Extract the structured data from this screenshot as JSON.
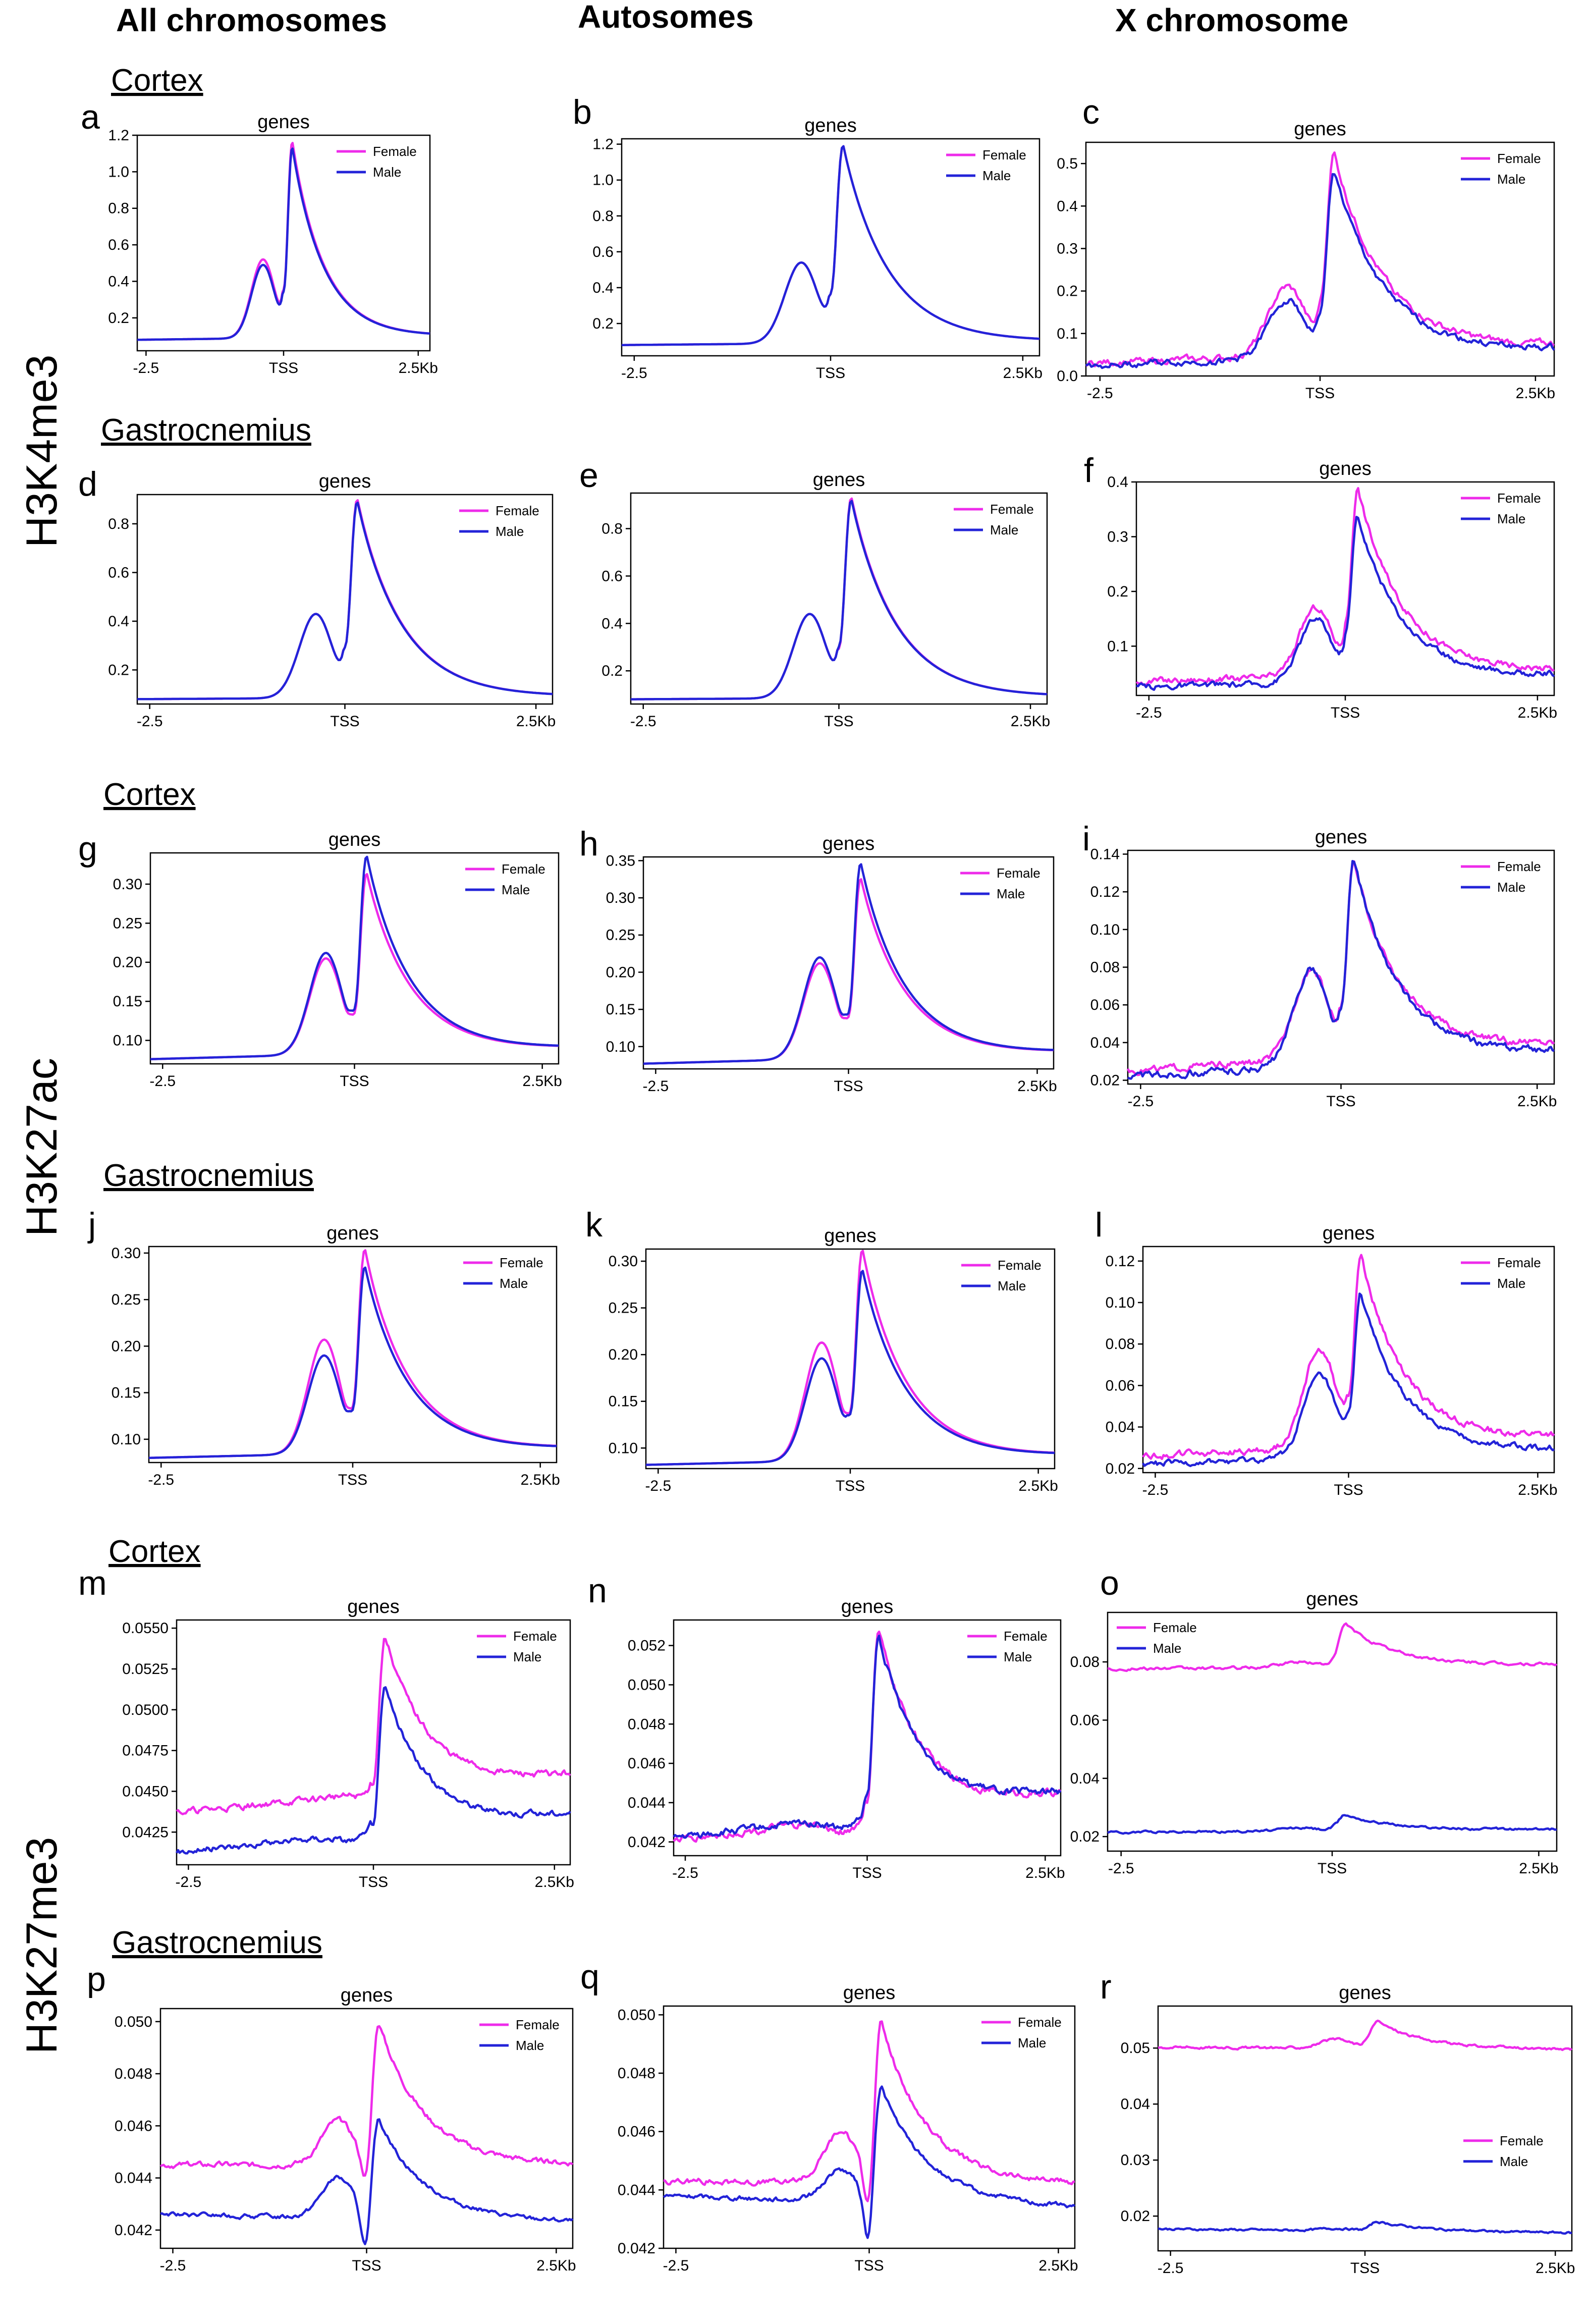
{
  "column_titles": [
    "All chromosomes",
    "Autosomes",
    "X chromosome"
  ],
  "row_titles": [
    "H3K4me3",
    "H3K27ac",
    "H3K27me3"
  ],
  "tissues": [
    "Cortex",
    "Gastrocnemius"
  ],
  "colors": {
    "female": "#ee2bea",
    "male": "#2323d8",
    "axis": "#000000"
  },
  "legend": [
    "Female",
    "Male"
  ],
  "chart_data": [
    {
      "id": "a",
      "type": "line",
      "title": "genes",
      "x_ticks": [
        "-2.5",
        "TSS",
        "2.5Kb"
      ],
      "ylim": [
        0.02,
        1.2
      ],
      "yticks": [
        "0.2",
        "0.4",
        "0.6",
        "0.8",
        "1.0",
        "1.2"
      ],
      "legend_position": "top-right",
      "series": [
        {
          "name": "Female",
          "shape": {
            "base": 0.08,
            "end": 0.1,
            "peak1": 0.52,
            "dip": 0.35,
            "peak2": 1.15
          }
        },
        {
          "name": "Male",
          "shape": {
            "base": 0.08,
            "end": 0.1,
            "peak1": 0.49,
            "dip": 0.34,
            "peak2": 1.12
          }
        }
      ]
    },
    {
      "id": "b",
      "type": "line",
      "title": "genes",
      "x_ticks": [
        "-2.5",
        "TSS",
        "2.5Kb"
      ],
      "ylim": [
        0.02,
        1.23
      ],
      "yticks": [
        "0.2",
        "0.4",
        "0.6",
        "0.8",
        "1.0",
        "1.2"
      ],
      "legend_position": "top-right",
      "series": [
        {
          "name": "Female",
          "shape": {
            "base": 0.08,
            "end": 0.1,
            "peak1": 0.54,
            "dip": 0.36,
            "peak2": 1.18
          }
        },
        {
          "name": "Male",
          "shape": {
            "base": 0.08,
            "end": 0.1,
            "peak1": 0.54,
            "dip": 0.36,
            "peak2": 1.18
          }
        }
      ]
    },
    {
      "id": "c",
      "type": "line",
      "title": "genes",
      "x_ticks": [
        "-2.5",
        "TSS",
        "2.5Kb"
      ],
      "ylim": [
        0,
        0.55
      ],
      "yticks": [
        "0.0",
        "0.1",
        "0.2",
        "0.3",
        "0.4",
        "0.5"
      ],
      "legend_position": "top-right",
      "series": [
        {
          "name": "Female",
          "shape": {
            "base": 0.03,
            "end": 0.07,
            "peak1": 0.21,
            "dip": 0.18,
            "peak2": 0.52
          }
        },
        {
          "name": "Male",
          "shape": {
            "base": 0.025,
            "end": 0.06,
            "peak1": 0.18,
            "dip": 0.15,
            "peak2": 0.48
          }
        }
      ]
    },
    {
      "id": "d",
      "type": "line",
      "title": "genes",
      "x_ticks": [
        "-2.5",
        "TSS",
        "2.5Kb"
      ],
      "ylim": [
        0.06,
        0.92
      ],
      "yticks": [
        "0.2",
        "0.4",
        "0.6",
        "0.8"
      ],
      "legend_position": "top-right",
      "series": [
        {
          "name": "Female",
          "shape": {
            "base": 0.08,
            "end": 0.09,
            "peak1": 0.43,
            "dip": 0.29,
            "peak2": 0.89
          }
        },
        {
          "name": "Male",
          "shape": {
            "base": 0.08,
            "end": 0.09,
            "peak1": 0.43,
            "dip": 0.29,
            "peak2": 0.88
          }
        }
      ]
    },
    {
      "id": "e",
      "type": "line",
      "title": "genes",
      "x_ticks": [
        "-2.5",
        "TSS",
        "2.5Kb"
      ],
      "ylim": [
        0.06,
        0.95
      ],
      "yticks": [
        "0.2",
        "0.4",
        "0.6",
        "0.8"
      ],
      "legend_position": "top-right",
      "series": [
        {
          "name": "Female",
          "shape": {
            "base": 0.08,
            "end": 0.09,
            "peak1": 0.44,
            "dip": 0.29,
            "peak2": 0.92
          }
        },
        {
          "name": "Male",
          "shape": {
            "base": 0.08,
            "end": 0.09,
            "peak1": 0.44,
            "dip": 0.3,
            "peak2": 0.91
          }
        }
      ]
    },
    {
      "id": "f",
      "type": "line",
      "title": "genes",
      "x_ticks": [
        "-2.5",
        "TSS",
        "2.5Kb"
      ],
      "ylim": [
        0.01,
        0.4
      ],
      "yticks": [
        "0.1",
        "0.2",
        "0.3",
        "0.4"
      ],
      "legend_position": "top-right",
      "series": [
        {
          "name": "Female",
          "shape": {
            "base": 0.035,
            "end": 0.055,
            "peak1": 0.17,
            "dip": 0.15,
            "peak2": 0.385
          }
        },
        {
          "name": "Male",
          "shape": {
            "base": 0.025,
            "end": 0.045,
            "peak1": 0.15,
            "dip": 0.13,
            "peak2": 0.335
          }
        }
      ]
    },
    {
      "id": "g",
      "type": "line",
      "title": "genes",
      "x_ticks": [
        "-2.5",
        "TSS",
        "2.5Kb"
      ],
      "ylim": [
        0.07,
        0.34
      ],
      "yticks": [
        "0.10",
        "0.15",
        "0.20",
        "0.25",
        "0.30"
      ],
      "legend_position": "top-right",
      "series": [
        {
          "name": "Female",
          "shape": {
            "base": 0.076,
            "end": 0.09,
            "peak1": 0.205,
            "dip": 0.133,
            "peak2": 0.31
          }
        },
        {
          "name": "Male",
          "shape": {
            "base": 0.076,
            "end": 0.09,
            "peak1": 0.212,
            "dip": 0.138,
            "peak2": 0.332
          }
        }
      ]
    },
    {
      "id": "h",
      "type": "line",
      "title": "genes",
      "x_ticks": [
        "-2.5",
        "TSS",
        "2.5Kb"
      ],
      "ylim": [
        0.07,
        0.355
      ],
      "yticks": [
        "0.10",
        "0.15",
        "0.20",
        "0.25",
        "0.30",
        "0.35"
      ],
      "legend_position": "top-right",
      "series": [
        {
          "name": "Female",
          "shape": {
            "base": 0.077,
            "end": 0.092,
            "peak1": 0.212,
            "dip": 0.138,
            "peak2": 0.322
          }
        },
        {
          "name": "Male",
          "shape": {
            "base": 0.077,
            "end": 0.092,
            "peak1": 0.22,
            "dip": 0.143,
            "peak2": 0.342
          }
        }
      ]
    },
    {
      "id": "i",
      "type": "line",
      "title": "genes",
      "x_ticks": [
        "-2.5",
        "TSS",
        "2.5Kb"
      ],
      "ylim": [
        0.018,
        0.142
      ],
      "yticks": [
        "0.02",
        "0.04",
        "0.06",
        "0.08",
        "0.10",
        "0.12",
        "0.14"
      ],
      "legend_position": "top-right",
      "series": [
        {
          "name": "Female",
          "shape": {
            "base": 0.025,
            "end": 0.039,
            "peak1": 0.079,
            "dip": 0.058,
            "peak2": 0.135
          }
        },
        {
          "name": "Male",
          "shape": {
            "base": 0.022,
            "end": 0.035,
            "peak1": 0.079,
            "dip": 0.057,
            "peak2": 0.136
          }
        }
      ]
    },
    {
      "id": "j",
      "type": "line",
      "title": "genes",
      "x_ticks": [
        "-2.5",
        "TSS",
        "2.5Kb"
      ],
      "ylim": [
        0.075,
        0.307
      ],
      "yticks": [
        "0.10",
        "0.15",
        "0.20",
        "0.25",
        "0.30"
      ],
      "legend_position": "top-right",
      "series": [
        {
          "name": "Female",
          "shape": {
            "base": 0.08,
            "end": 0.09,
            "peak1": 0.207,
            "dip": 0.133,
            "peak2": 0.3
          }
        },
        {
          "name": "Male",
          "shape": {
            "base": 0.08,
            "end": 0.09,
            "peak1": 0.19,
            "dip": 0.13,
            "peak2": 0.282
          }
        }
      ]
    },
    {
      "id": "k",
      "type": "line",
      "title": "genes",
      "x_ticks": [
        "-2.5",
        "TSS",
        "2.5Kb"
      ],
      "ylim": [
        0.078,
        0.313
      ],
      "yticks": [
        "0.10",
        "0.15",
        "0.20",
        "0.25",
        "0.30"
      ],
      "legend_position": "top-right",
      "series": [
        {
          "name": "Female",
          "shape": {
            "base": 0.082,
            "end": 0.092,
            "peak1": 0.213,
            "dip": 0.137,
            "peak2": 0.308
          }
        },
        {
          "name": "Male",
          "shape": {
            "base": 0.082,
            "end": 0.092,
            "peak1": 0.196,
            "dip": 0.135,
            "peak2": 0.287
          }
        }
      ]
    },
    {
      "id": "l",
      "type": "line",
      "title": "genes",
      "x_ticks": [
        "-2.5",
        "TSS",
        "2.5Kb"
      ],
      "ylim": [
        0.018,
        0.127
      ],
      "yticks": [
        "0.02",
        "0.04",
        "0.06",
        "0.08",
        "0.10",
        "0.12"
      ],
      "legend_position": "top-right",
      "series": [
        {
          "name": "Female",
          "shape": {
            "base": 0.026,
            "end": 0.035,
            "peak1": 0.078,
            "dip": 0.055,
            "peak2": 0.122
          }
        },
        {
          "name": "Male",
          "shape": {
            "base": 0.022,
            "end": 0.029,
            "peak1": 0.065,
            "dip": 0.048,
            "peak2": 0.103
          }
        }
      ]
    },
    {
      "id": "m",
      "type": "line",
      "title": "genes",
      "x_ticks": [
        "-2.5",
        "TSS",
        "2.5Kb"
      ],
      "ylim": [
        0.0405,
        0.0555
      ],
      "yticks": [
        "0.0425",
        "0.0450",
        "0.0475",
        "0.0500",
        "0.0525",
        "0.0550"
      ],
      "legend_position": "top-right",
      "series": [
        {
          "name": "Female",
          "shape": {
            "base": 0.0437,
            "end": 0.046,
            "peak1": 0.0447,
            "dip": 0.0455,
            "peak2": 0.0545
          }
        },
        {
          "name": "Male",
          "shape": {
            "base": 0.0413,
            "end": 0.0436,
            "peak1": 0.042,
            "dip": 0.043,
            "peak2": 0.0514
          }
        }
      ]
    },
    {
      "id": "n",
      "type": "line",
      "title": "genes",
      "x_ticks": [
        "-2.5",
        "TSS",
        "2.5Kb"
      ],
      "ylim": [
        0.0413,
        0.0533
      ],
      "yticks": [
        "0.042",
        "0.044",
        "0.046",
        "0.048",
        "0.050",
        "0.052"
      ],
      "legend_position": "top-right",
      "series": [
        {
          "name": "Female",
          "shape": {
            "base": 0.0421,
            "end": 0.0444,
            "peak1": 0.0425,
            "dip": 0.044,
            "peak2": 0.0528
          }
        },
        {
          "name": "Male",
          "shape": {
            "base": 0.0422,
            "end": 0.0445,
            "peak1": 0.0427,
            "dip": 0.0442,
            "peak2": 0.0525
          }
        }
      ]
    },
    {
      "id": "o",
      "type": "line",
      "title": "genes",
      "x_ticks": [
        "-2.5",
        "TSS",
        "2.5Kb"
      ],
      "ylim": [
        0.015,
        0.097
      ],
      "yticks": [
        "0.02",
        "0.04",
        "0.06",
        "0.08"
      ],
      "legend_position": "top-left",
      "series": [
        {
          "name": "Female",
          "shape": {
            "base": 0.0775,
            "end": 0.079,
            "peak1": 0.08,
            "dip": 0.081,
            "peak2": 0.093
          }
        },
        {
          "name": "Male",
          "shape": {
            "base": 0.0215,
            "end": 0.0225,
            "peak1": 0.023,
            "dip": 0.024,
            "peak2": 0.0275
          }
        }
      ]
    },
    {
      "id": "p",
      "type": "line",
      "title": "genes",
      "x_ticks": [
        "-2.5",
        "TSS",
        "2.5Kb"
      ],
      "ylim": [
        0.0413,
        0.0505
      ],
      "yticks": [
        "0.042",
        "0.044",
        "0.046",
        "0.048",
        "0.050"
      ],
      "legend_position": "top-right",
      "series": [
        {
          "name": "Female",
          "shape": {
            "base": 0.0445,
            "end": 0.0445,
            "peak1": 0.0462,
            "dip": 0.0441,
            "peak2": 0.0499
          }
        },
        {
          "name": "Male",
          "shape": {
            "base": 0.0426,
            "end": 0.0423,
            "peak1": 0.044,
            "dip": 0.0414,
            "peak2": 0.0462
          }
        }
      ]
    },
    {
      "id": "q",
      "type": "line",
      "title": "genes",
      "x_ticks": [
        "-2.5",
        "TSS",
        "2.5Kb"
      ],
      "ylim": [
        0.042,
        0.0503
      ],
      "yticks": [
        "0.042",
        "0.044",
        "0.046",
        "0.048",
        "0.050"
      ],
      "legend_position": "top-right",
      "series": [
        {
          "name": "Female",
          "shape": {
            "base": 0.0443,
            "end": 0.0442,
            "peak1": 0.046,
            "dip": 0.0437,
            "peak2": 0.0497
          }
        },
        {
          "name": "Male",
          "shape": {
            "base": 0.0438,
            "end": 0.0434,
            "peak1": 0.0447,
            "dip": 0.0424,
            "peak2": 0.0475
          }
        }
      ]
    },
    {
      "id": "r",
      "type": "line",
      "title": "genes",
      "x_ticks": [
        "-2.5",
        "TSS",
        "2.5Kb"
      ],
      "ylim": [
        0.0138,
        0.0575
      ],
      "yticks": [
        "0.02",
        "0.03",
        "0.04",
        "0.05"
      ],
      "legend_position": "center-right",
      "series": [
        {
          "name": "Female",
          "shape": {
            "base": 0.0502,
            "end": 0.0497,
            "peak1": 0.0515,
            "dip": 0.052,
            "peak2": 0.0548
          }
        },
        {
          "name": "Male",
          "shape": {
            "base": 0.0177,
            "end": 0.017,
            "peak1": 0.0178,
            "dip": 0.018,
            "peak2": 0.019
          }
        }
      ]
    }
  ]
}
